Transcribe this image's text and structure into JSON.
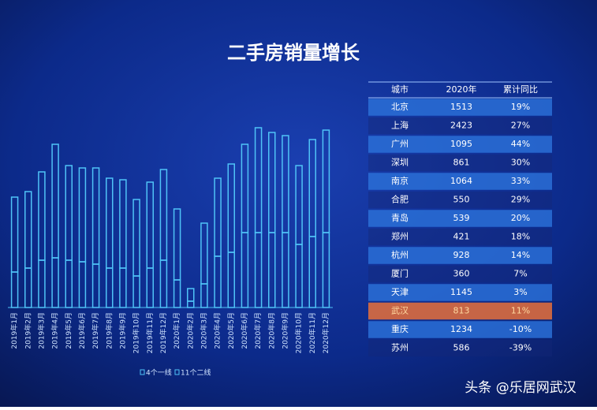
{
  "chart_data": {
    "type": "bar",
    "stacked": true,
    "title": "二手房销量增长",
    "categories": [
      "2019年1月",
      "2019年2月",
      "2019年3月",
      "2019年4月",
      "2019年5月",
      "2019年6月",
      "2019年7月",
      "2019年8月",
      "2019年9月",
      "2019年10月",
      "2019年11月",
      "2019年12月",
      "2020年1月",
      "2020年2月",
      "2020年3月",
      "2020年4月",
      "2020年5月",
      "2020年6月",
      "2020年7月",
      "2020年8月",
      "2020年9月",
      "2020年10月",
      "2020年11月",
      "2020年12月"
    ],
    "series": [
      {
        "name": "4个一线",
        "color": "#4fc3f7",
        "values": [
          45,
          50,
          60,
          63,
          60,
          58,
          55,
          50,
          50,
          40,
          50,
          60,
          35,
          8,
          30,
          65,
          70,
          95,
          95,
          95,
          95,
          80,
          90,
          95
        ]
      },
      {
        "name": "11个二线",
        "color": "#4fc3f7",
        "values": [
          95,
          97,
          112,
          144,
          120,
          119,
          122,
          114,
          112,
          97,
          109,
          115,
          90,
          16,
          77,
          99,
          112,
          112,
          133,
          127,
          123,
          100,
          123,
          130
        ]
      }
    ],
    "ylim": [
      0,
      240
    ]
  },
  "table": {
    "header": [
      "城市",
      "2020年",
      "累计同比"
    ],
    "rows": [
      [
        "北京",
        1513,
        "19%"
      ],
      [
        "上海",
        2423,
        "27%"
      ],
      [
        "广州",
        1095,
        "44%"
      ],
      [
        "深圳",
        861,
        "30%"
      ],
      [
        "南京",
        1064,
        "33%"
      ],
      [
        "合肥",
        550,
        "29%"
      ],
      [
        "青岛",
        539,
        "20%"
      ],
      [
        "郑州",
        421,
        "18%"
      ],
      [
        "杭州",
        928,
        "14%"
      ],
      [
        "厦门",
        360,
        "7%"
      ],
      [
        "天津",
        1145,
        "3%"
      ],
      [
        "武汉",
        813,
        "11%"
      ],
      [
        "重庆",
        1234,
        "-10%"
      ],
      [
        "苏州",
        586,
        "-39%"
      ]
    ]
  },
  "watermark": "头条 @乐居网武汉"
}
